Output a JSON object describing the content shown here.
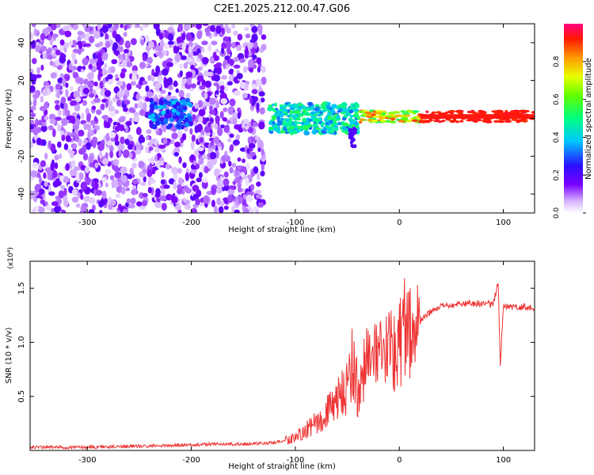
{
  "title": "C2E1.2025.212.00.47.G06",
  "colors": {
    "snr_line": "#ee3333",
    "axis": "#000000"
  },
  "chart_data": [
    {
      "type": "heatmap",
      "xlabel": "Height of straight line (km)",
      "ylabel": "Frequency (Hz)",
      "xlim": [
        -355,
        130
      ],
      "ylim": [
        -50,
        50
      ],
      "xticks": [
        -300,
        -200,
        -100,
        0,
        100
      ],
      "yticks": [
        -40,
        -20,
        0,
        20,
        40
      ],
      "xticklabels": [
        "-300",
        "-200",
        "-100",
        "0",
        "100"
      ],
      "yticklabels": [
        "-40",
        "-20",
        "0",
        "20",
        "40"
      ],
      "grid": false,
      "description_regions": [
        {
          "x_range": [
            -355,
            -130
          ],
          "freq_range": [
            -50,
            50
          ],
          "amplitude": [
            0.05,
            0.2
          ]
        },
        {
          "x_range": [
            -125,
            -40
          ],
          "freq_range": [
            -8,
            8
          ],
          "amplitude": [
            0.3,
            0.55
          ]
        },
        {
          "x_range": [
            -40,
            130
          ],
          "freq_range": [
            -2,
            4
          ],
          "amplitude": [
            0.5,
            1.0
          ]
        }
      ],
      "colorbar": {
        "label": "Normalized spectral amplitude",
        "range": [
          0.0,
          1.0
        ],
        "ticks": [
          0.0,
          0.2,
          0.4,
          0.6,
          0.8
        ],
        "ticklabels": [
          "0.0",
          "0.2",
          "0.4",
          "0.6",
          "0.8"
        ],
        "colormap": "rainbow (white→purple→blue→cyan→green→yellow→red→magenta)"
      }
    },
    {
      "type": "line",
      "xlabel": "Height of straight line (km)",
      "ylabel": "SNR (10 * v/v)",
      "y_multiplier": "(x10⁴)",
      "xlim": [
        -355,
        130
      ],
      "ylim": [
        0,
        1.75
      ],
      "xticks": [
        -300,
        -200,
        -100,
        0,
        100
      ],
      "yticks": [
        0.5,
        1.0,
        1.5
      ],
      "xticklabels": [
        "-300",
        "-200",
        "-100",
        "0",
        "100"
      ],
      "yticklabels": [
        "0.5",
        "1.0",
        "1.5"
      ],
      "grid": false,
      "series": [
        {
          "x": [
            -355,
            -300,
            -250,
            -200,
            -180,
            -150,
            -120,
            -100,
            -80,
            -60,
            -50,
            -45,
            -40,
            -30,
            -20,
            -10,
            0,
            5,
            10,
            20,
            30,
            40,
            60,
            80,
            90,
            95,
            97,
            100,
            110,
            120,
            130
          ],
          "y": [
            0.03,
            0.03,
            0.04,
            0.05,
            0.06,
            0.06,
            0.07,
            0.12,
            0.25,
            0.45,
            0.6,
            0.85,
            0.55,
            0.9,
            0.8,
            0.95,
            1.0,
            1.15,
            1.1,
            1.2,
            1.28,
            1.33,
            1.36,
            1.36,
            1.35,
            1.55,
            0.8,
            1.33,
            1.32,
            1.33,
            1.32
          ]
        }
      ]
    }
  ]
}
